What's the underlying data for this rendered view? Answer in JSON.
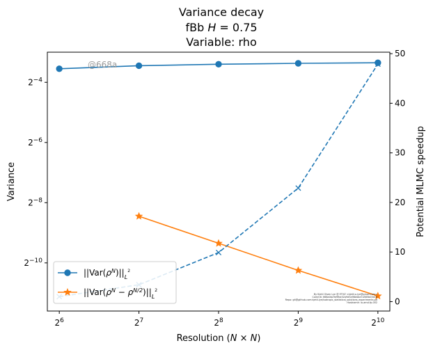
{
  "chart_data": {
    "type": "line",
    "title_lines": [
      "Variance decay",
      "fBb H = 0.75",
      "Variable: rho"
    ],
    "xlabel": "Resolution (N × N)",
    "ylabel_left": "Variance",
    "ylabel_right": "Potential MLMC speedup",
    "x_tick_labels": [
      {
        "base": "2",
        "exp": "6"
      },
      {
        "base": "2",
        "exp": "7"
      },
      {
        "base": "2",
        "exp": "8"
      },
      {
        "base": "2",
        "exp": "9"
      },
      {
        "base": "2",
        "exp": "10"
      }
    ],
    "x": [
      64,
      128,
      256,
      512,
      1024
    ],
    "xscale": "log2",
    "xlim_log2": [
      5.85,
      10.15
    ],
    "y_left_scale": "log2",
    "y_left_lim_log2": [
      -11.6,
      -3.0
    ],
    "y_left_ticks": [
      {
        "base": "2",
        "exp": "−4",
        "value_log2": -4
      },
      {
        "base": "2",
        "exp": "−6",
        "value_log2": -6
      },
      {
        "base": "2",
        "exp": "−8",
        "value_log2": -8
      },
      {
        "base": "2",
        "exp": "−10",
        "value_log2": -10
      }
    ],
    "y_right_lim": [
      -1.9,
      50.3
    ],
    "y_right_ticks": [
      "0",
      "10",
      "20",
      "30",
      "40",
      "50"
    ],
    "y_right_tick_values": [
      0,
      10,
      20,
      30,
      40,
      50
    ],
    "series": [
      {
        "name": "||Var(ρ^N)||_{L^2}",
        "legend_parts": {
          "pre": "||Var(",
          "rho": "ρ",
          "sup": "N",
          "post": ")||",
          "sub": "L",
          "subsup": "2"
        },
        "axis": "left",
        "color": "#1f77b4",
        "marker": "circle",
        "linestyle": "solid",
        "x": [
          64,
          128,
          256,
          512,
          1024
        ],
        "log2_values": [
          -3.55,
          -3.45,
          -3.4,
          -3.37,
          -3.35
        ]
      },
      {
        "name": "||Var(ρ^N − ρ^{N/2})||_{L^2}",
        "legend_parts": {
          "pre": "||Var(",
          "rho": "ρ",
          "sup": "N",
          "minus": " − ",
          "rho2": "ρ",
          "sup2": "N/2",
          "post": ")||",
          "sub": "L",
          "subsup": "2"
        },
        "axis": "left",
        "color": "#ff7f0e",
        "marker": "star",
        "linestyle": "solid",
        "x": [
          128,
          256,
          512,
          1024
        ],
        "log2_values": [
          -8.45,
          -9.35,
          -10.25,
          -11.1
        ]
      },
      {
        "name": "",
        "axis": "right",
        "color": "#1f77b4",
        "marker": "x",
        "linestyle": "dashed",
        "x": [
          64,
          128,
          256,
          512,
          1024
        ],
        "values": [
          1.0,
          3.4,
          9.9,
          22.9,
          47.9
        ]
      }
    ],
    "legend_location": "lower-left",
    "grid": false,
    "watermark": "@668a",
    "fine_print_lines": [
      "By Kjetil Olsen Lye @ ETHZ <kjetil.o.lye@gmail.com>",
      "Commit: 668a0bc9e9fbe32a9d5a98d4da7a585b03e16",
      "Repo: git@github.com:kjetil-lye/isotropic_statistical_solutions_experiments.git",
      "Hostname: lo-amd-fp-002"
    ]
  }
}
